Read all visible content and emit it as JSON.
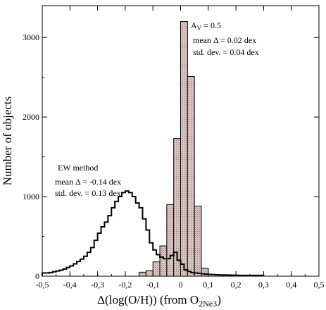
{
  "chart_data": {
    "type": "histogram",
    "xlabel": "Δ(log(O/H)) (from O",
    "xlabel_sub": "2Ne3",
    "xlabel_close": ")",
    "ylabel": "Number of objects",
    "xlim": [
      -0.5,
      0.5
    ],
    "ylim": [
      0,
      3400
    ],
    "x_ticks": [
      -0.5,
      -0.4,
      -0.3,
      -0.2,
      -0.1,
      0,
      0.1,
      0.2,
      0.3,
      0.4,
      0.5
    ],
    "x_tick_labels": [
      "-0,5",
      "-0,4",
      "-0,3",
      "-0,2",
      "-0,1",
      "0",
      "0,1",
      "0,2",
      "0,3",
      "0,4",
      "0,5"
    ],
    "y_ticks": [
      0,
      1000,
      2000,
      3000
    ],
    "y_tick_labels": [
      "0",
      "1000",
      "2000",
      "3000"
    ],
    "series": [
      {
        "fill": "#d9b8b8",
        "stroke": "#000000",
        "edges": [
          -0.15,
          -0.125,
          -0.1,
          -0.075,
          -0.05,
          -0.025,
          0,
          0.025,
          0.05,
          0.075,
          0.1
        ],
        "values": [
          50,
          70,
          180,
          380,
          900,
          1730,
          3200,
          2510,
          880,
          100
        ]
      },
      {
        "fill": "none",
        "stroke": "#000000",
        "edges": [
          -0.5,
          -0.4875,
          -0.475,
          -0.4625,
          -0.45,
          -0.4375,
          -0.425,
          -0.4125,
          -0.4,
          -0.3875,
          -0.375,
          -0.3625,
          -0.35,
          -0.3375,
          -0.325,
          -0.3125,
          -0.3,
          -0.2875,
          -0.275,
          -0.2625,
          -0.25,
          -0.2375,
          -0.225,
          -0.2125,
          -0.2,
          -0.1875,
          -0.175,
          -0.1625,
          -0.15,
          -0.1375,
          -0.125,
          -0.1125,
          -0.1,
          -0.0875,
          -0.075,
          -0.0625,
          -0.05,
          -0.0375,
          -0.025,
          -0.0125,
          0,
          0.0125,
          0.025,
          0.0375,
          0.05,
          0.0625,
          0.075,
          0.0875,
          0.1,
          0.1125,
          0.125,
          0.1375,
          0.15,
          0.1625,
          0.175,
          0.1875,
          0.2,
          0.2125,
          0.225,
          0.2375,
          0.25,
          0.2625,
          0.275,
          0.2875,
          0.3
        ],
        "values": [
          40,
          40,
          45,
          55,
          65,
          75,
          90,
          110,
          130,
          155,
          185,
          215,
          250,
          300,
          360,
          450,
          540,
          620,
          680,
          760,
          860,
          940,
          1000,
          1050,
          1070,
          1050,
          1000,
          920,
          860,
          720,
          580,
          420,
          330,
          270,
          240,
          220,
          220,
          260,
          300,
          200,
          150,
          80,
          60,
          45,
          40,
          35,
          30,
          25,
          22,
          20,
          18,
          16,
          15,
          14,
          13,
          12,
          11,
          10,
          10,
          10,
          10,
          10,
          10,
          10
        ]
      }
    ],
    "annotations": [
      {
        "line1_prefix": "A",
        "line1_sub": "V",
        "line1_suffix": " = 0.5",
        "line2": "mean Δ = 0.02 dex",
        "line3": "std. dev. = 0.04 dex"
      },
      {
        "line1": "EW method",
        "line2": "mean Δ = -0.14 dex",
        "line3": "std. dev. = 0.13 dex"
      }
    ]
  }
}
